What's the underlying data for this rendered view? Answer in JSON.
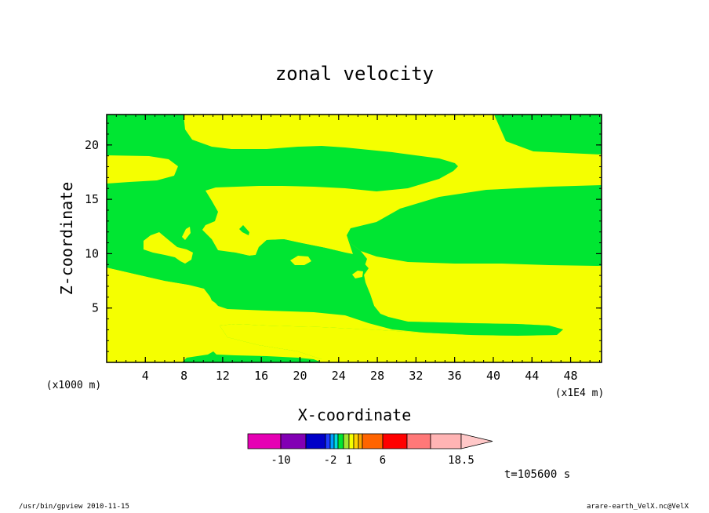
{
  "chart_data": {
    "type": "contour",
    "title": "zonal velocity",
    "xlabel": "X-coordinate",
    "ylabel": "Z-coordinate",
    "x_unit_left": "(x1000 m)",
    "x_unit_right": "(x1E4 m)",
    "xlim": [
      0,
      51.2
    ],
    "ylim": [
      0,
      22.8
    ],
    "x_ticks": [
      4,
      8,
      12,
      16,
      20,
      24,
      28,
      32,
      36,
      40,
      44,
      48
    ],
    "x_tick_labels": [
      "4",
      "8",
      "12",
      "16",
      "20",
      "24",
      "28",
      "32",
      "36",
      "40",
      "44",
      "48"
    ],
    "y_ticks": [
      5,
      10,
      15,
      20
    ],
    "y_tick_labels": [
      "5",
      "10",
      "15",
      "20"
    ],
    "levels_visible": [
      {
        "range": "1 to 2",
        "color": "#00e632"
      },
      {
        "range": "2 to 3",
        "color": "#f5ff00"
      }
    ],
    "regions": [
      {
        "color": "#00e632",
        "x_range": [
          0,
          51.2
        ],
        "z_range": [
          8.6,
          22.8
        ],
        "note": "upper green band"
      },
      {
        "color": "#f5ff00",
        "x_range": [
          0,
          51.2
        ],
        "z_range": [
          0,
          8.6
        ],
        "note": "lower yellow band"
      },
      {
        "color": "#f5ff00",
        "x_range": [
          8,
          51.2
        ],
        "z_range": [
          15.5,
          22.8
        ],
        "note": "upper yellow tongue"
      },
      {
        "color": "#f5ff00",
        "x_range": [
          10,
          36
        ],
        "z_range": [
          9.9,
          17
        ],
        "note": "mid yellow body"
      },
      {
        "color": "#00e632",
        "x_range": [
          0,
          48
        ],
        "z_range": [
          2.5,
          11.8
        ],
        "note": "green finger to lower right"
      },
      {
        "color": "#00e632",
        "x_range": [
          8,
          25
        ],
        "z_range": [
          0,
          1
        ],
        "note": "green patch at bottom"
      },
      {
        "color": "#f5ff00",
        "x_range": [
          0,
          7
        ],
        "z_range": [
          16.6,
          19.2
        ],
        "note": "yellow lens upper left"
      },
      {
        "color": "#f5ff00",
        "x_range": [
          3.5,
          9
        ],
        "z_range": [
          9.2,
          11.8
        ],
        "note": "yellow blob left"
      }
    ],
    "colorbar": {
      "colors": [
        "#e600b4",
        "#8200b4",
        "#0000c8",
        "#1e3cff",
        "#00a0ff",
        "#00dcdc",
        "#00e632",
        "#a0e632",
        "#f5ff00",
        "#ffd200",
        "#ffa500",
        "#ff6400",
        "#ff0000",
        "#ff7878",
        "#ffb4b4",
        "#ffc8c8"
      ],
      "labels": [
        "-10",
        "-2",
        "1",
        "6",
        "18.5"
      ]
    },
    "time_label": "t=105600 s"
  },
  "footer": {
    "left": "/usr/bin/gpview   2010-11-15",
    "right": "arare-earth_VelX.nc@VelX"
  }
}
